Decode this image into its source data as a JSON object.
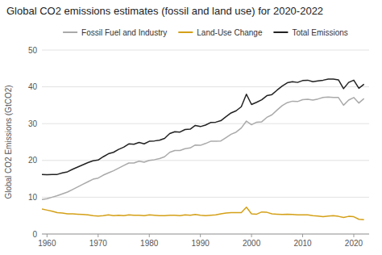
{
  "chart_data": {
    "type": "line",
    "title": "Global CO2 emissions estimates (fossil and land use) for 2020-2022",
    "ylabel": "Global CO2 Emissions (GtCO2)",
    "x": [
      1959,
      1960,
      1961,
      1962,
      1963,
      1964,
      1965,
      1966,
      1967,
      1968,
      1969,
      1970,
      1971,
      1972,
      1973,
      1974,
      1975,
      1976,
      1977,
      1978,
      1979,
      1980,
      1981,
      1982,
      1983,
      1984,
      1985,
      1986,
      1987,
      1988,
      1989,
      1990,
      1991,
      1992,
      1993,
      1994,
      1995,
      1996,
      1997,
      1998,
      1999,
      2000,
      2001,
      2002,
      2003,
      2004,
      2005,
      2006,
      2007,
      2008,
      2009,
      2010,
      2011,
      2012,
      2013,
      2014,
      2015,
      2016,
      2017,
      2018,
      2019,
      2020,
      2021,
      2022
    ],
    "series": [
      {
        "name": "Fossil Fuel and Industry",
        "color": "#aaaaaa",
        "values": [
          9.4,
          9.6,
          10.0,
          10.4,
          10.9,
          11.4,
          12.1,
          12.8,
          13.5,
          14.2,
          14.9,
          15.2,
          16.0,
          16.6,
          17.2,
          17.9,
          18.6,
          19.3,
          19.3,
          19.8,
          19.5,
          20.0,
          20.2,
          20.5,
          21.0,
          22.2,
          22.7,
          22.7,
          23.2,
          23.4,
          24.2,
          24.1,
          24.6,
          25.2,
          25.2,
          25.3,
          26.2,
          27.1,
          27.7,
          28.8,
          30.7,
          29.7,
          30.4,
          30.5,
          31.7,
          32.4,
          33.7,
          34.9,
          35.7,
          36.1,
          36.0,
          36.5,
          36.6,
          36.4,
          36.7,
          37.1,
          37.2,
          37.1,
          37.1,
          35.0,
          36.4,
          37.1,
          35.6,
          36.8
        ]
      },
      {
        "name": "Land-Use Change",
        "color": "#d4a017",
        "values": [
          6.8,
          6.5,
          6.2,
          5.8,
          5.7,
          5.5,
          5.5,
          5.4,
          5.3,
          5.2,
          5.0,
          4.9,
          5.0,
          5.2,
          5.0,
          5.1,
          5.0,
          5.2,
          5.1,
          5.1,
          5.0,
          5.2,
          5.1,
          5.0,
          5.0,
          5.1,
          5.1,
          5.0,
          5.2,
          5.1,
          5.3,
          5.1,
          5.0,
          5.1,
          5.2,
          5.5,
          5.7,
          5.8,
          5.8,
          5.8,
          7.3,
          5.5,
          5.4,
          6.0,
          5.9,
          5.5,
          5.4,
          5.3,
          5.4,
          5.3,
          5.2,
          5.2,
          5.2,
          5.0,
          4.9,
          4.7,
          4.9,
          5.0,
          4.8,
          4.5,
          4.8,
          4.7,
          4.0,
          3.9
        ]
      },
      {
        "name": "Total Emissions",
        "color": "#222222",
        "values": [
          16.2,
          16.1,
          16.2,
          16.2,
          16.6,
          16.9,
          17.6,
          18.2,
          18.8,
          19.4,
          19.9,
          20.1,
          21.0,
          21.8,
          22.2,
          23.0,
          23.6,
          24.5,
          24.4,
          24.9,
          24.5,
          25.2,
          25.3,
          25.5,
          26.0,
          27.3,
          27.8,
          27.7,
          28.4,
          28.5,
          29.5,
          29.2,
          29.6,
          30.3,
          30.4,
          30.8,
          31.9,
          32.9,
          33.5,
          34.6,
          38.0,
          35.2,
          35.8,
          36.5,
          37.6,
          37.9,
          39.1,
          40.2,
          41.1,
          41.4,
          41.2,
          41.7,
          41.8,
          41.4,
          41.6,
          41.8,
          42.1,
          42.1,
          41.9,
          39.5,
          41.2,
          41.8,
          39.6,
          40.7
        ]
      }
    ],
    "xlim": [
      1959,
      2023
    ],
    "xticks": [
      1960,
      1970,
      1980,
      1990,
      2000,
      2010,
      2020
    ],
    "ylim": [
      0,
      50
    ],
    "yticks": [
      0,
      10,
      20,
      30,
      40,
      50
    ],
    "grid": true,
    "legend": "top"
  }
}
